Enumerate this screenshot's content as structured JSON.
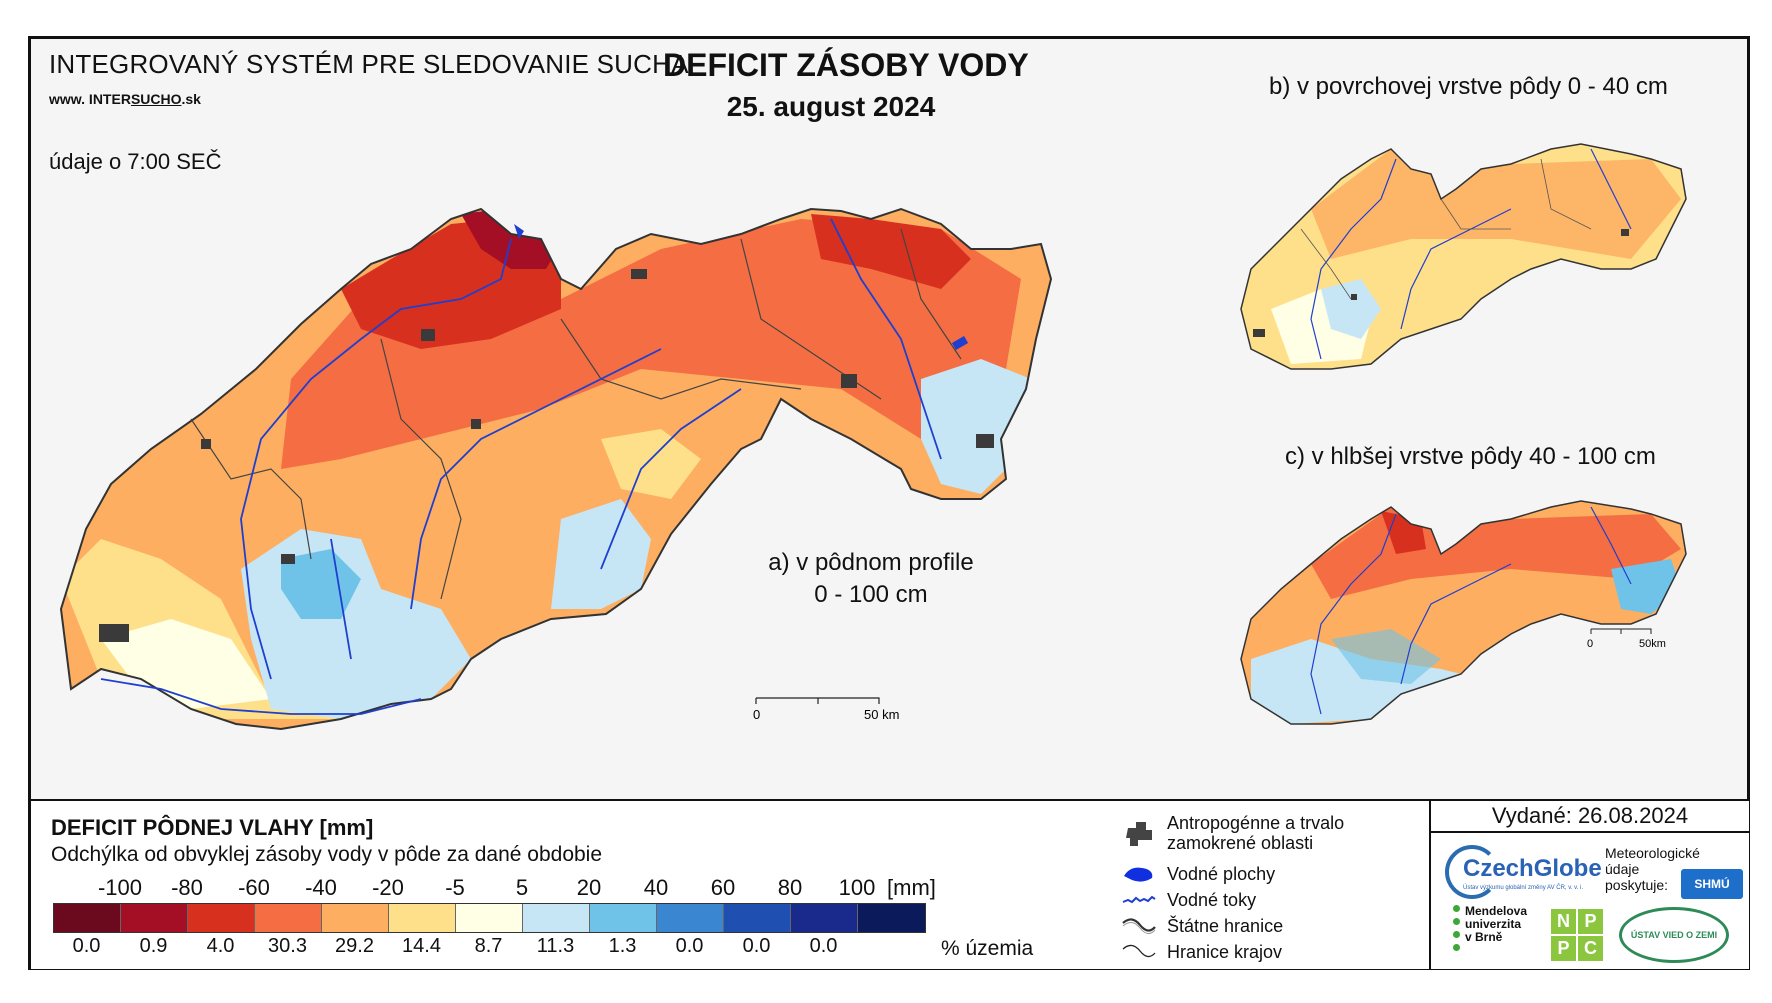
{
  "header": {
    "system_title": "INTEGROVANÝ SYSTÉM PRE SLEDOVANIE SUCHA",
    "url_prefix": "www. INTER",
    "url_underlined": "SUCHO",
    "url_suffix": ".sk",
    "data_time": "údaje o 7:00 SEČ",
    "main_title": "DEFICIT ZÁSOBY VODY",
    "main_date": "25. august 2024"
  },
  "maps": {
    "a": {
      "caption_line1": "a) v pôdnom profile",
      "caption_line2": "0 - 100 cm",
      "scale_zero": "0",
      "scale_end": "50 km"
    },
    "b": {
      "caption": "b) v povrchovej vrstve pôdy 0 - 40 cm"
    },
    "c": {
      "caption": "c) v hlbšej vrstve pôdy 40 - 100 cm",
      "scale_zero": "0",
      "scale_end": "50km"
    }
  },
  "legend": {
    "title": "DEFICIT PÔDNEJ VLAHY [mm]",
    "subtitle": "Odchýlka od obvyklej zásoby vody v pôde za dané obdobie",
    "ticks": [
      "-100",
      "-80",
      "-60",
      "-40",
      "-20",
      "-5",
      "5",
      "20",
      "40",
      "60",
      "80",
      "100"
    ],
    "unit": "[mm]",
    "colors": [
      "#6b0a1e",
      "#a50f25",
      "#d7301f",
      "#f46d43",
      "#fdae61",
      "#fee08b",
      "#ffffe5",
      "#c6e6f5",
      "#6fc3e8",
      "#3a86d0",
      "#1f4fb0",
      "#1a2a8c",
      "#0b1a5a"
    ],
    "percentages": [
      "0.0",
      "0.9",
      "4.0",
      "30.3",
      "29.2",
      "14.4",
      "8.7",
      "11.3",
      "1.3",
      "0.0",
      "0.0",
      "0.0"
    ],
    "percent_unit": "% územia",
    "symbols": [
      {
        "label_line1": "Antropogénne a trvalo",
        "label_line2": "zamokrené oblasti",
        "icon": "urban-area-symbol"
      },
      {
        "label_line1": "Vodné plochy",
        "label_line2": "",
        "icon": "water-body-symbol"
      },
      {
        "label_line1": "Vodné toky",
        "label_line2": "",
        "icon": "river-symbol"
      },
      {
        "label_line1": "Štátne hranice",
        "label_line2": "",
        "icon": "state-border-symbol"
      },
      {
        "label_line1": "Hranice krajov",
        "label_line2": "",
        "icon": "region-border-symbol"
      }
    ]
  },
  "footer": {
    "issued": "Vydané: 26.08.2024",
    "czechglobe": "CzechGlobe",
    "czechglobe_small": "Ústav výzkumu globální změny AV ČR, v. v. i.",
    "meteo_label_1": "Meteorologické",
    "meteo_label_2": "údaje",
    "meteo_label_3": "poskytuje:",
    "shmu": "SHMÚ",
    "mendel_1": "Mendelova",
    "mendel_2": "univerzita",
    "mendel_3": "v Brně",
    "nppc": [
      "N",
      "P",
      "P",
      "C"
    ],
    "uvz": "ÚSTAV VIED O ZEMI"
  }
}
